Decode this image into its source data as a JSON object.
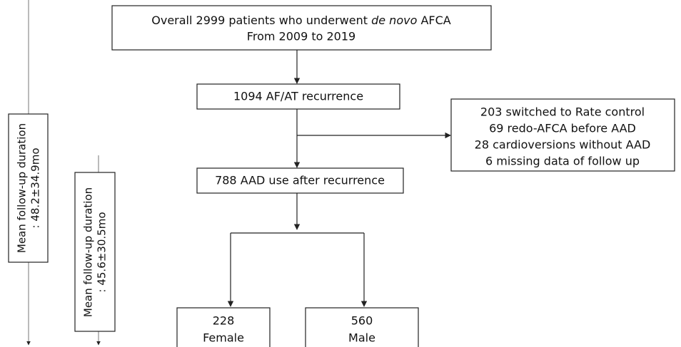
{
  "nodes": [
    {
      "label_parts": [
        "Overall 2999 patients who underwent ",
        "de novo",
        " AFCA"
      ],
      "label_line2": "From 2009 to 2019"
    },
    {
      "label": "1094 AF/AT recurrence"
    },
    {
      "lines": [
        "203 switched to Rate control",
        "69 redo-AFCA before AAD",
        "28 cardioversions without AAD",
        "6 missing data of follow up"
      ]
    },
    {
      "label": "788 AAD use after recurrence"
    },
    {
      "count": "228",
      "label": "Female"
    },
    {
      "count": "560",
      "label": "Male"
    }
  ],
  "follow_up": [
    {
      "title": "Mean follow-up duration",
      "value": ":  48.2±34.9mo"
    },
    {
      "title": "Mean follow-up duration",
      "value": ":  45.6±30.5mo"
    }
  ]
}
